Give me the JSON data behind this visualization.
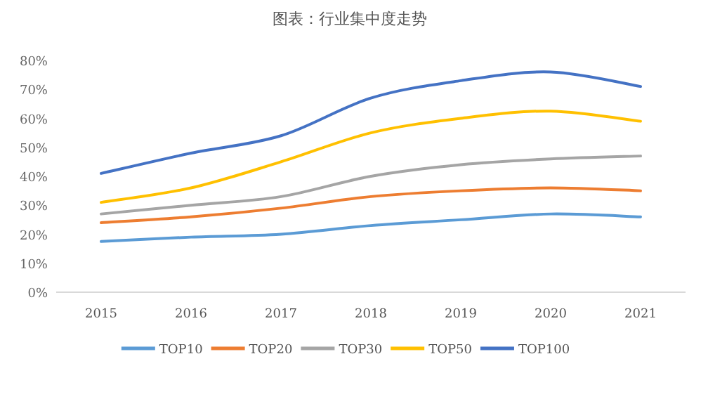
{
  "chart_data": {
    "type": "line",
    "title": "图表：行业集中度走势",
    "categories": [
      "2015",
      "2016",
      "2017",
      "2018",
      "2019",
      "2020",
      "2021"
    ],
    "series": [
      {
        "name": "TOP10",
        "color": "#5b9bd5",
        "values": [
          17.5,
          19,
          20,
          23,
          25,
          27,
          26
        ]
      },
      {
        "name": "TOP20",
        "color": "#ed7d31",
        "values": [
          24,
          26,
          29,
          33,
          35,
          36,
          35
        ]
      },
      {
        "name": "TOP30",
        "color": "#a5a5a5",
        "values": [
          27,
          30,
          33,
          40,
          44,
          46,
          47
        ]
      },
      {
        "name": "TOP50",
        "color": "#ffc000",
        "values": [
          31,
          36,
          45,
          55,
          60,
          62.5,
          59
        ]
      },
      {
        "name": "TOP100",
        "color": "#4472c4",
        "values": [
          41,
          48,
          54,
          67,
          73,
          76,
          71
        ]
      }
    ],
    "ylim": [
      0,
      80
    ],
    "yticks": [
      {
        "value": 0,
        "label": "0%"
      },
      {
        "value": 10,
        "label": "10%"
      },
      {
        "value": 20,
        "label": "20%"
      },
      {
        "value": 30,
        "label": "30%"
      },
      {
        "value": 40,
        "label": "40%"
      },
      {
        "value": 50,
        "label": "50%"
      },
      {
        "value": 60,
        "label": "60%"
      },
      {
        "value": 70,
        "label": "70%"
      },
      {
        "value": 80,
        "label": "80%"
      }
    ],
    "grid": false,
    "legend": "bottom",
    "marker": "none",
    "line_style": "solid"
  }
}
